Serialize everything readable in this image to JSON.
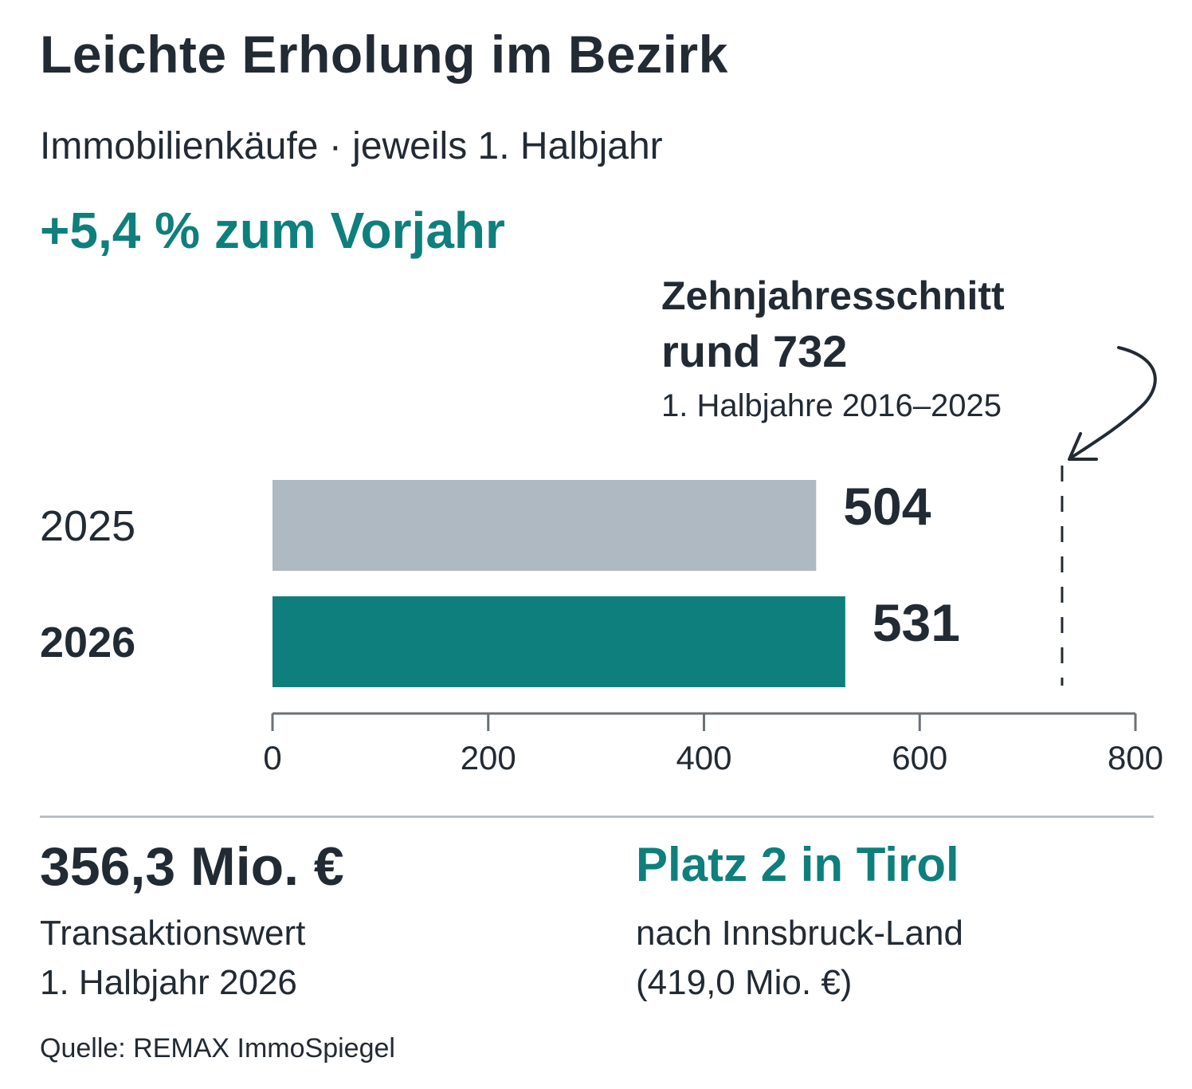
{
  "header": {
    "title": "Leichte Erholung im Bezirk",
    "subtitle": "Immobilienkäufe · jeweils 1. Halbjahr",
    "highlight": "+5,4 % zum Vorjahr"
  },
  "chart_data": {
    "type": "bar",
    "orientation": "horizontal",
    "title": "Leichte Erholung im Bezirk",
    "subtitle": "Immobilienkäufe · jeweils 1. Halbjahr",
    "categories": [
      "2025",
      "2026"
    ],
    "values": [
      504,
      531
    ],
    "value_labels": [
      "504",
      "531"
    ],
    "bar_colors": [
      "#aeb9c1",
      "#0e7f7c"
    ],
    "xlim": [
      0,
      800
    ],
    "x_ticks": [
      0,
      200,
      400,
      600,
      800
    ],
    "x_tick_labels": [
      "0",
      "200",
      "400",
      "600",
      "800"
    ],
    "grid": false,
    "legend": "none",
    "reference_line": {
      "value": 732,
      "style": "dashed",
      "label_line1": "Zehnjahresschnitt",
      "label_line2": "rund 732",
      "label_line3": "1. Halbjahre 2016–2025"
    }
  },
  "stats": {
    "left": {
      "value": "356,3 Mio. €",
      "line1": "Transaktionswert",
      "line2": "1. Halbjahr 2026"
    },
    "right": {
      "value": "Platz 2 in Tirol",
      "line1": "nach Innsbruck-Land",
      "line2": "(419,0 Mio. €)"
    }
  },
  "source": "Quelle: REMAX ImmoSpiegel",
  "colors": {
    "accent": "#0e7f7c",
    "previous_year_bar": "#aeb9c1",
    "text": "#222a33",
    "axis": "#6b7176",
    "divider": "#b9c0c6"
  }
}
